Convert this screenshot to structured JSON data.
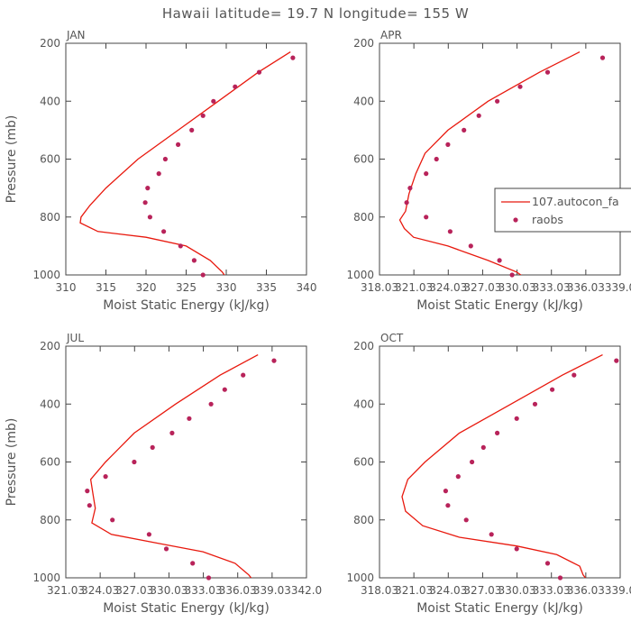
{
  "title": "Hawaii  latitude= 19.7 N longitude= 155 W",
  "colors": {
    "model": "#e8190e",
    "obs": "#b8235a",
    "axis": "#444444",
    "text": "#555555"
  },
  "legend": {
    "model_label": "107.autocon_fa",
    "obs_label": "raobs"
  },
  "chart_data": [
    {
      "type": "line",
      "panel": "JAN",
      "xlabel": "Moist Static Energy (kJ/kg)",
      "ylabel": "Pressure (mb)",
      "xlim": [
        310,
        340
      ],
      "ylim": [
        1000,
        200
      ],
      "xticks": [
        310,
        315,
        320,
        325,
        330,
        335,
        340
      ],
      "xtick_labels": [
        "310",
        "315",
        "320",
        "325",
        "330",
        "335",
        "340"
      ],
      "yticks": [
        200,
        400,
        600,
        800,
        1000
      ],
      "ytick_labels": [
        "200",
        "400",
        "600",
        "800",
        "1000"
      ],
      "model": {
        "name": "107.autocon_fa",
        "x": [
          338,
          334,
          329,
          324,
          319,
          315,
          313,
          311.9,
          311.8,
          314,
          320,
          325,
          328,
          329.5,
          330
        ],
        "y": [
          230,
          300,
          400,
          500,
          600,
          700,
          760,
          800,
          820,
          850,
          870,
          900,
          950,
          990,
          1010
        ]
      },
      "obs": {
        "name": "raobs",
        "x": [
          338.3,
          334.1,
          331.1,
          328.4,
          327.1,
          325.7,
          324.0,
          322.4,
          321.6,
          320.2,
          319.9,
          320.5,
          322.2,
          324.3,
          326.0,
          327.1
        ],
        "y": [
          250,
          300,
          350,
          400,
          450,
          500,
          550,
          600,
          650,
          700,
          750,
          800,
          850,
          900,
          950,
          1000
        ]
      }
    },
    {
      "type": "line",
      "panel": "APR",
      "xlabel": "Moist Static Energy (kJ/kg)",
      "ylabel": "",
      "xlim": [
        318.03,
        339.03
      ],
      "ylim": [
        1000,
        200
      ],
      "xticks": [
        318.03,
        321.03,
        324.03,
        327.03,
        330.03,
        333.03,
        336.03,
        339.03
      ],
      "xtick_labels": [
        "318.03",
        "321.03",
        "324.03",
        "327.03",
        "330.03",
        "333.03",
        "336.03",
        "339.0"
      ],
      "yticks": [
        200,
        400,
        600,
        800,
        1000
      ],
      "ytick_labels": [
        "200",
        "400",
        "600",
        "800",
        "1000"
      ],
      "model": {
        "name": "107.autocon_fa",
        "x": [
          335.5,
          332,
          327.5,
          324,
          322,
          321.2,
          320.6,
          320.3,
          319.8,
          320.2,
          321,
          324,
          327.5,
          330,
          330.7
        ],
        "y": [
          230,
          300,
          400,
          500,
          580,
          650,
          720,
          780,
          810,
          840,
          870,
          900,
          950,
          990,
          1010
        ]
      },
      "obs": {
        "name": "raobs",
        "x": [
          337.5,
          332.7,
          330.3,
          328.3,
          326.7,
          325.4,
          324.0,
          323.0,
          322.1,
          320.7,
          320.4,
          322.1,
          324.2,
          326.0,
          328.5,
          329.6
        ],
        "y": [
          250,
          300,
          350,
          400,
          450,
          500,
          550,
          600,
          650,
          700,
          750,
          800,
          850,
          900,
          950,
          1000
        ]
      }
    },
    {
      "type": "line",
      "panel": "JUL",
      "xlabel": "Moist Static Energy (kJ/kg)",
      "ylabel": "Pressure (mb)",
      "xlim": [
        321.03,
        342.03
      ],
      "ylim": [
        1000,
        200
      ],
      "xticks": [
        321.03,
        324.03,
        327.03,
        330.03,
        333.03,
        336.03,
        339.03,
        342.03
      ],
      "xtick_labels": [
        "321.03",
        "324.03",
        "327.03",
        "330.03",
        "333.03",
        "336.03",
        "339.03",
        "342.0"
      ],
      "yticks": [
        200,
        400,
        600,
        800,
        1000
      ],
      "ytick_labels": [
        "200",
        "400",
        "600",
        "800",
        "1000"
      ],
      "model": {
        "name": "107.autocon_fa",
        "x": [
          337.8,
          334.5,
          330.6,
          327,
          324.5,
          323.2,
          323.4,
          323.6,
          323.3,
          325,
          329,
          333,
          335.8,
          337,
          337.4
        ],
        "y": [
          230,
          300,
          400,
          500,
          600,
          660,
          710,
          760,
          810,
          850,
          880,
          910,
          950,
          990,
          1010
        ]
      },
      "obs": {
        "name": "raobs",
        "x": [
          339.2,
          336.5,
          334.9,
          333.7,
          331.8,
          330.3,
          328.6,
          327.0,
          324.5,
          322.9,
          323.1,
          325.1,
          328.3,
          329.8,
          332.1,
          333.5
        ],
        "y": [
          250,
          300,
          350,
          400,
          450,
          500,
          550,
          600,
          650,
          700,
          750,
          800,
          850,
          900,
          950,
          1000
        ]
      }
    },
    {
      "type": "line",
      "panel": "OCT",
      "xlabel": "Moist Static Energy (kJ/kg)",
      "ylabel": "",
      "xlim": [
        318.03,
        339.03
      ],
      "ylim": [
        1000,
        200
      ],
      "xticks": [
        318.03,
        321.03,
        324.03,
        327.03,
        330.03,
        333.03,
        336.03,
        339.03
      ],
      "xtick_labels": [
        "318.03",
        "321.03",
        "324.03",
        "327.03",
        "330.03",
        "333.03",
        "336.03",
        "339.0"
      ],
      "yticks": [
        200,
        400,
        600,
        800,
        1000
      ],
      "ytick_labels": [
        "200",
        "400",
        "600",
        "800",
        "1000"
      ],
      "model": {
        "name": "107.autocon_fa",
        "x": [
          337.5,
          334,
          329.5,
          325,
          322,
          320.5,
          320,
          320.3,
          321.8,
          325,
          330,
          333.5,
          335.5,
          335.8,
          336.2
        ],
        "y": [
          230,
          300,
          400,
          500,
          600,
          660,
          720,
          770,
          820,
          860,
          890,
          920,
          960,
          990,
          1010
        ]
      },
      "obs": {
        "name": "raobs",
        "x": [
          338.7,
          335.0,
          333.1,
          331.6,
          330.0,
          328.3,
          327.1,
          326.1,
          324.9,
          323.8,
          324.0,
          325.6,
          327.8,
          330.0,
          332.7,
          333.8
        ],
        "y": [
          250,
          300,
          350,
          400,
          450,
          500,
          550,
          600,
          650,
          700,
          750,
          800,
          850,
          900,
          950,
          1000
        ]
      }
    }
  ]
}
